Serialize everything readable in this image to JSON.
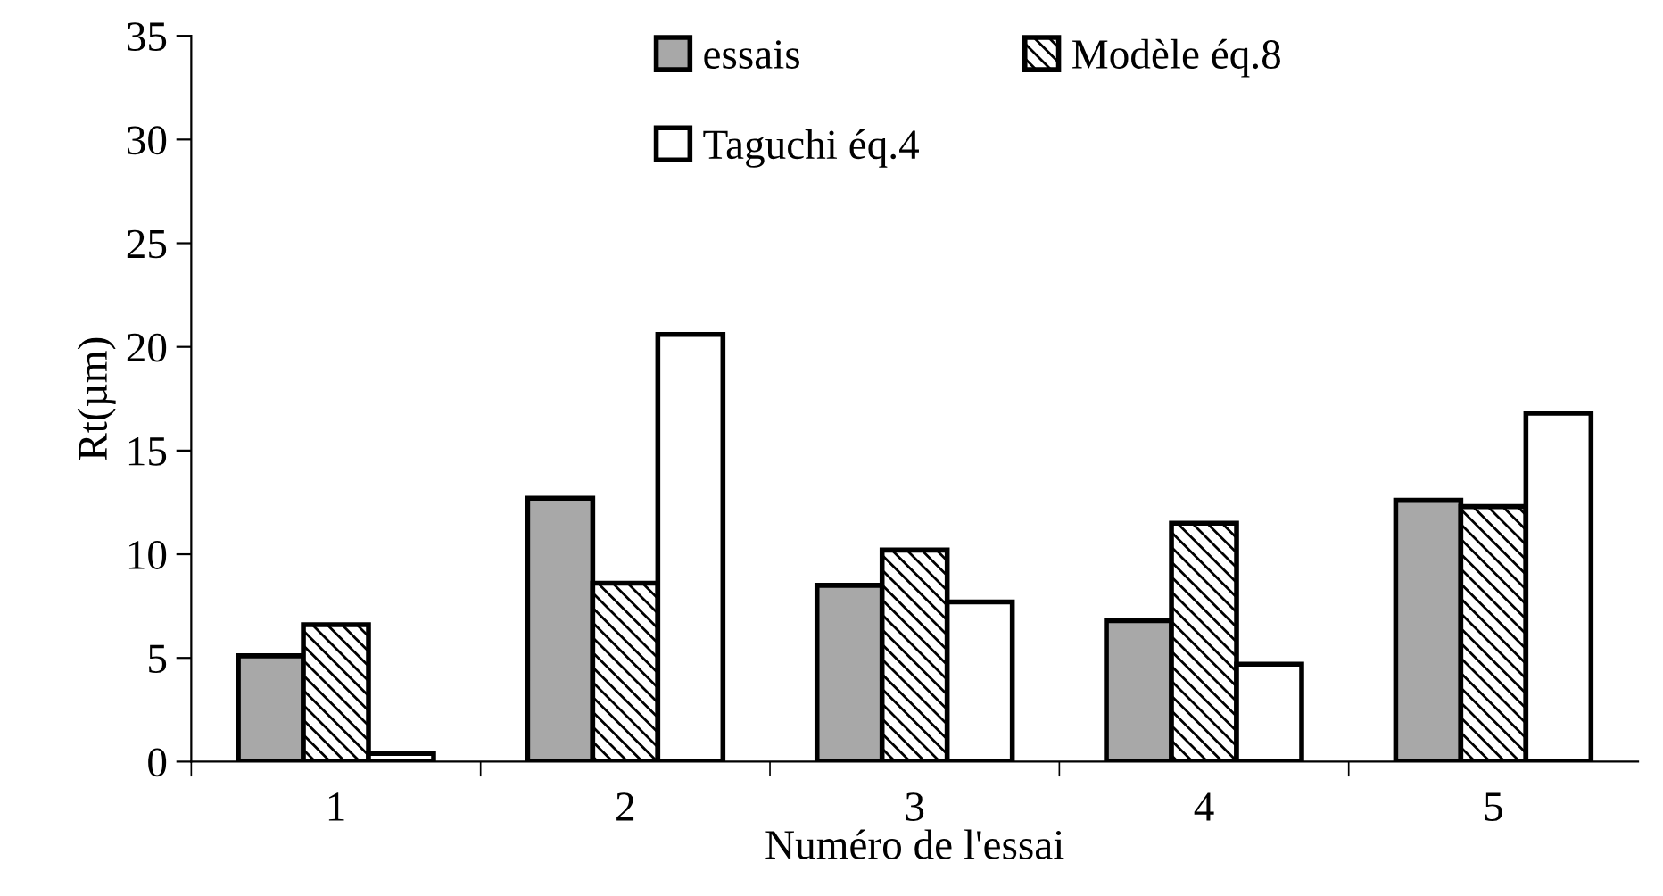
{
  "chart_data": {
    "type": "bar",
    "xlabel": "Numéro de l'essai",
    "ylabel": "Rt(µm)",
    "categories": [
      "1",
      "2",
      "3",
      "4",
      "5"
    ],
    "series": [
      {
        "name": "essais",
        "color": "#a8a8a8",
        "values": [
          5.1,
          12.7,
          8.5,
          6.8,
          12.6
        ]
      },
      {
        "name": "Modèle éq.8",
        "color": "#000000",
        "values": [
          6.6,
          8.6,
          10.2,
          11.5,
          12.3
        ]
      },
      {
        "name": "Taguchi éq.4",
        "color": "#ffffff",
        "values": [
          0.4,
          20.6,
          7.7,
          4.7,
          16.8
        ]
      }
    ],
    "ylim": [
      0,
      35
    ],
    "yticks": [
      0,
      5,
      10,
      15,
      20,
      25,
      30,
      35
    ],
    "grid": false,
    "legend": "top right"
  }
}
